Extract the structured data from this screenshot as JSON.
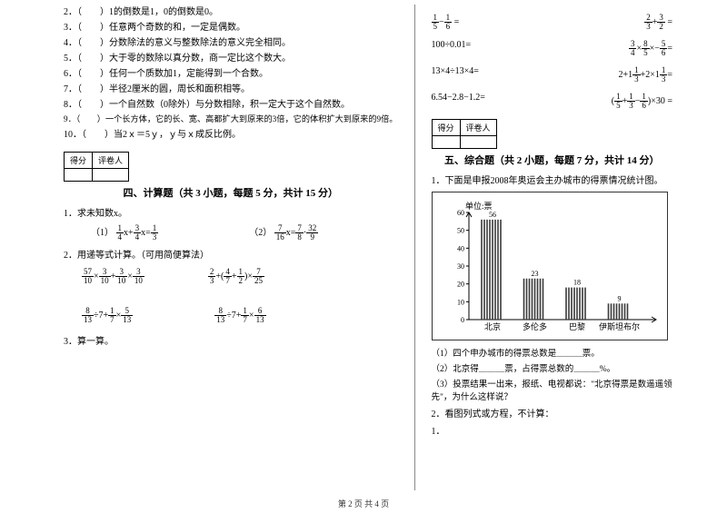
{
  "left": {
    "tf": [
      {
        "n": "2．",
        "p": "（　　）",
        "t": "1的倒数是1，0的倒数是0。"
      },
      {
        "n": "3．",
        "p": "（　　）",
        "t": "任意两个奇数的和，一定是偶数。"
      },
      {
        "n": "4．",
        "p": "（　　）",
        "t": "分数除法的意义与整数除法的意义完全相同。"
      },
      {
        "n": "5．",
        "p": "（　　）",
        "t": "大于零的数除以真分数，商一定比这个数大。"
      },
      {
        "n": "6．",
        "p": "（　　）",
        "t": "任何一个质数加1，定能得到一个合数。"
      },
      {
        "n": "7．",
        "p": "（　　）",
        "t": "半径2厘米的圆，周长和面积相等。"
      },
      {
        "n": "8．",
        "p": "（　　）",
        "t": "一个自然数（0除外）与分数相除，积一定大于这个自然数。"
      },
      {
        "n": "9．",
        "p": "（　　）",
        "t": "一个长方体，它的长、宽、高都扩大到原来的3倍，它的体积扩大到原来的9倍。"
      },
      {
        "n": "10．",
        "p": "（　　）",
        "t": "当2ｘ＝5ｙ，ｙ与ｘ成反比例。"
      }
    ],
    "score_cells": {
      "a": "得分",
      "b": "评卷人"
    },
    "section4": "四、计算题（共 3 小题，每题 5 分，共计 15 分）",
    "p1": "1．求未知数x。",
    "eq1_label": "（1）",
    "eq2_label": "（2）",
    "p2": "2．用递等式计算。（可用简便算法）"
  },
  "right": {
    "score_cells": {
      "a": "得分",
      "b": "评卷人"
    },
    "section5": "五、综合题（共 2 小题，每题 7 分，共计 14 分）",
    "p1": "1．下面是申报2008年奥运会主办城市的得票情况统计图。",
    "chart": {
      "unit_label": "单位:票",
      "y_max": 60,
      "y_step": 10,
      "values": [
        56,
        23,
        18,
        9
      ],
      "labels": [
        "北京",
        "多伦多",
        "巴黎",
        "伊斯坦布尔"
      ],
      "bar_color": "#3a3a3a",
      "axis_color": "#000000",
      "bg": "#ffffff"
    },
    "q1": "（1）四个申办城市的得票总数是＿＿＿票。",
    "q2": "（2）北京得＿＿＿票，占得票总数的＿＿＿%。",
    "q3": "（3）投票结果一出来，报纸、电视都说：\"北京得票是数遥遥领先\"，为什么这样说？",
    "p2": "2．看图列式或方程，不计算：",
    "p2_1": "1．"
  },
  "math": {
    "r1a_op": "−",
    "r1a_eq": " =",
    "r1b_op": "+",
    "r1b_eq": " =",
    "r2a": "100÷0.01=",
    "r2b_mid": "×",
    "r2b_end": "×−=",
    "r3a": "13×4÷13×4=",
    "r3b_a": "2+1",
    "r3b_b": "+2×1",
    "r3b_eq": "=",
    "r4a": "6.54−2.8−1.2=",
    "r4b_open": "(",
    "r4b_close": ")×30 =",
    "eq1_mid": "x+",
    "eq1_end": "x=",
    "eq2_mid": "x=",
    "eq2_end": "",
    "p2a_mid": "×",
    "p2a_plus": "+",
    "p2a_x2": "×",
    "p2b_plus": "+(",
    "p2b_mid": "+",
    "p2b_close": ")×",
    "p3_div": "÷7+",
    "p3_x": "×"
  },
  "footer": "第 2 页 共 4 页"
}
